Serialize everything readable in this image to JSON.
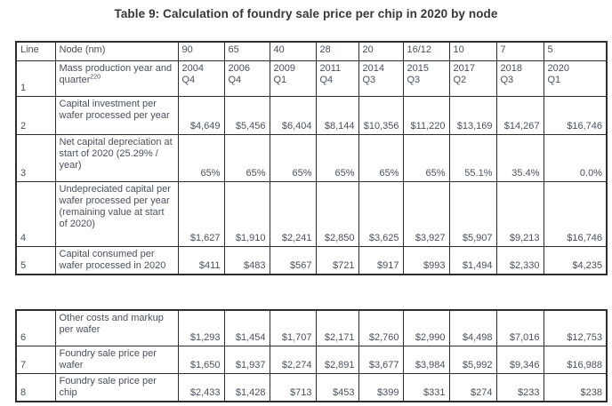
{
  "title": "Table 9: Calculation of foundry sale price per chip in 2020 by node",
  "columns": {
    "line": "Line",
    "label": "Node (nm)",
    "nodes": [
      "90",
      "65",
      "40",
      "28",
      "20",
      "16/12",
      "10",
      "7",
      "5"
    ]
  },
  "table1": {
    "rows": [
      {
        "line": "1",
        "label": "Mass production year and quarter",
        "label_sup": "220",
        "value_format": "year-quarter",
        "values": [
          "2004\nQ4",
          "2006\nQ4",
          "2009\nQ1",
          "2011\nQ4",
          "2014\nQ3",
          "2015\nQ3",
          "2017\nQ2",
          "2018\nQ3",
          "2020\nQ1"
        ]
      },
      {
        "line": "2",
        "label": "Capital investment per wafer processed per year",
        "value_format": "currency",
        "values": [
          "$4,649",
          "$5,456",
          "$6,404",
          "$8,144",
          "$10,356",
          "$11,220",
          "$13,169",
          "$14,267",
          "$16,746"
        ]
      },
      {
        "line": "3",
        "label": "Net capital depreciation at start of 2020 (25.29% / year)",
        "value_format": "percent",
        "values": [
          "65%",
          "65%",
          "65%",
          "65%",
          "65%",
          "65%",
          "55.1%",
          "35.4%",
          "0.0%"
        ]
      },
      {
        "line": "4",
        "label": "Undepreciated capital per wafer processed per year (remaining value at start of 2020)",
        "value_format": "currency",
        "values": [
          "$1,627",
          "$1,910",
          "$2,241",
          "$2,850",
          "$3,625",
          "$3,927",
          "$5,907",
          "$9,213",
          "$16,746"
        ]
      },
      {
        "line": "5",
        "label": "Capital consumed per wafer processed in 2020",
        "value_format": "currency",
        "values": [
          "$411",
          "$483",
          "$567",
          "$721",
          "$917",
          "$993",
          "$1,494",
          "$2,330",
          "$4,235"
        ]
      }
    ]
  },
  "table2": {
    "rows": [
      {
        "line": "6",
        "label": "Other costs and markup per wafer",
        "value_format": "currency",
        "values": [
          "$1,293",
          "$1,454",
          "$1,707",
          "$2,171",
          "$2,760",
          "$2,990",
          "$4,498",
          "$7,016",
          "$12,753"
        ]
      },
      {
        "line": "7",
        "label": "Foundry sale price per wafer",
        "value_format": "currency",
        "values": [
          "$1,650",
          "$1,937",
          "$2,274",
          "$2,891",
          "$3,677",
          "$3,984",
          "$5,992",
          "$9,346",
          "$16,988"
        ]
      },
      {
        "line": "8",
        "label": "Foundry sale price per chip",
        "value_format": "currency",
        "values": [
          "$2,433",
          "$1,428",
          "$713",
          "$453",
          "$399",
          "$331",
          "$274",
          "$233",
          "$238"
        ]
      }
    ]
  }
}
